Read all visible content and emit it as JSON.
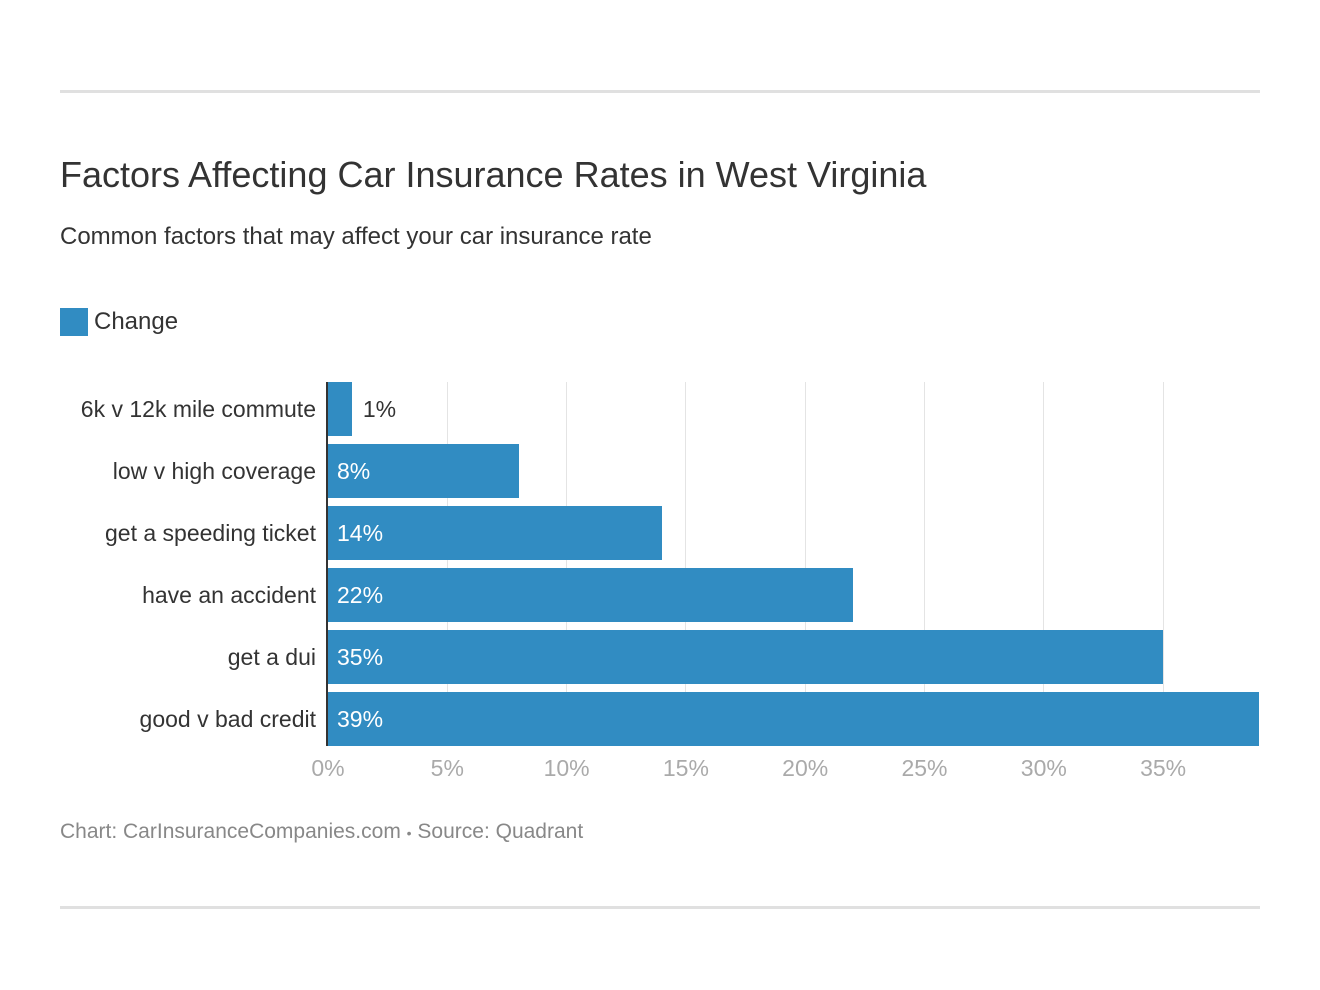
{
  "title": "Factors Affecting Car Insurance Rates in West Virginia",
  "subtitle": "Common factors that may affect your car insurance rate",
  "footer": {
    "chart_label": "Chart: CarInsuranceCompanies.com",
    "separator": "•",
    "source_label": "Source: Quadrant"
  },
  "chart_data": {
    "type": "bar",
    "orientation": "horizontal",
    "categories": [
      "6k v 12k mile commute",
      "low v high coverage",
      "get a speeding ticket",
      "have an accident",
      "get a dui",
      "good v bad credit"
    ],
    "series": [
      {
        "name": "Change",
        "values": [
          1,
          8,
          14,
          22,
          35,
          39
        ],
        "labels": [
          "1%",
          "8%",
          "14%",
          "22%",
          "35%",
          "39%"
        ],
        "color": "#318cc2"
      }
    ],
    "xlim": [
      0,
      39
    ],
    "xticks": [
      0,
      5,
      10,
      15,
      20,
      25,
      30,
      35
    ],
    "xtick_labels": [
      "0%",
      "5%",
      "10%",
      "15%",
      "20%",
      "25%",
      "30%",
      "35%"
    ],
    "grid": true,
    "legend": "top-left"
  }
}
